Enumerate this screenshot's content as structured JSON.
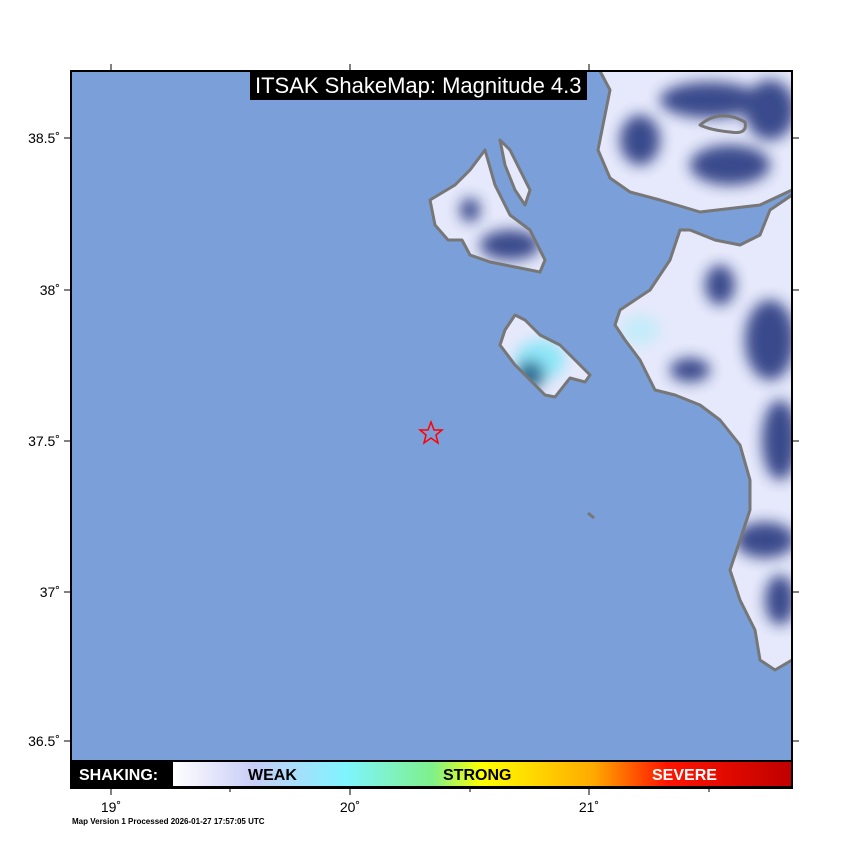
{
  "title": "ITSAK ShakeMap: Magnitude 4.3",
  "footer": "Map Version 1 Processed 2026-01-27 17:57:05 UTC",
  "axes": {
    "lon_ticks": [
      "19˚",
      "20˚",
      "21˚"
    ],
    "lat_ticks": [
      "38.5˚",
      "38˚",
      "37.5˚",
      "37˚",
      "36.5˚"
    ]
  },
  "legend": {
    "heading": "SHAKING:",
    "weak": "WEAK",
    "strong": "STRONG",
    "severe": "SEVERE"
  },
  "colors": {
    "sea": "#7a9fd9",
    "coast": "#777777",
    "land_light": "#e6e9fb",
    "land_dark": "#1c2f78",
    "epicenter": "#ff0000"
  },
  "epicenter": {
    "icon": "star-icon",
    "lon": 20.34,
    "lat": 37.53
  }
}
